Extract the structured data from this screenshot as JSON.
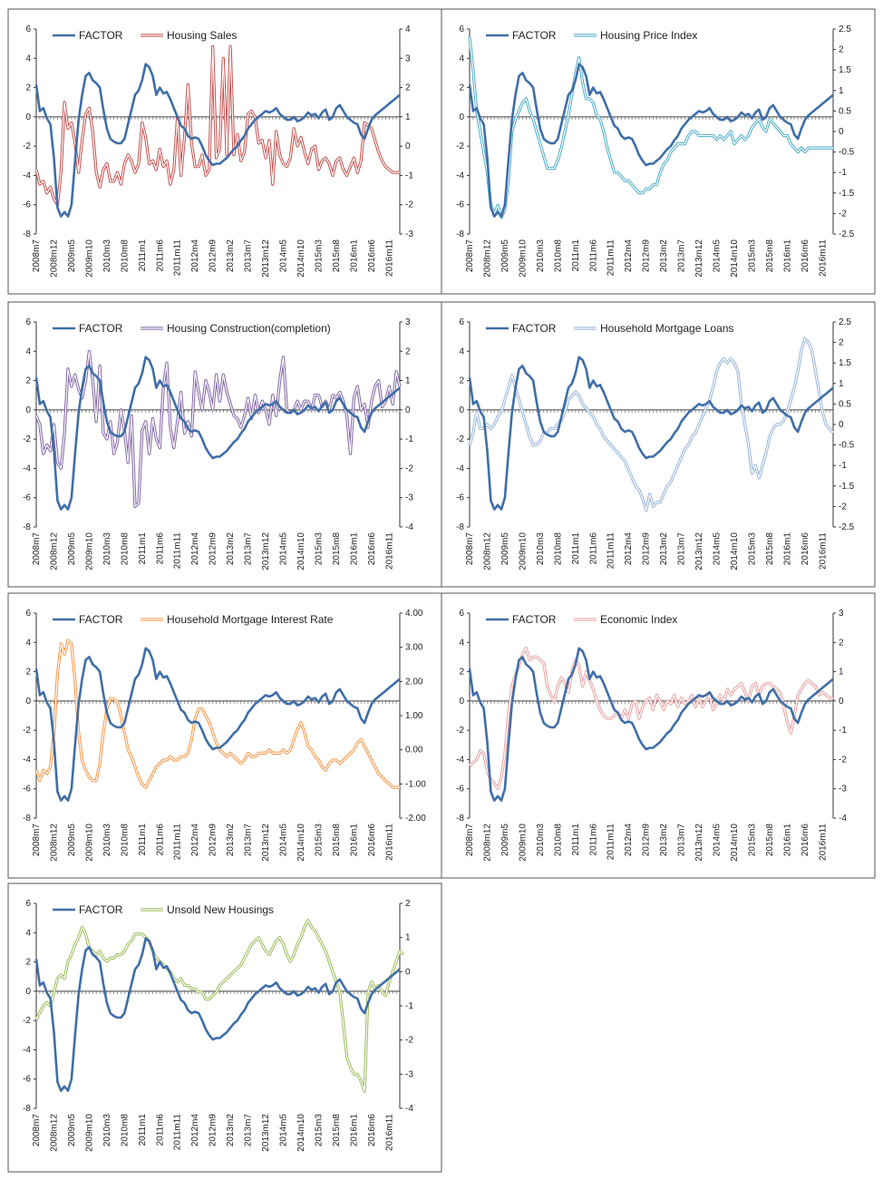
{
  "x_ticks": [
    "2008m7",
    "2008m12",
    "2009m5",
    "2009m10",
    "2010m3",
    "2010m8",
    "2011m1",
    "2011m6",
    "2011m11",
    "2012m4",
    "2012m9",
    "2013m2",
    "2013m7",
    "2013m12",
    "2014m5",
    "2014m10",
    "2015m3",
    "2015m8",
    "2016m1",
    "2016m6",
    "2016m11"
  ],
  "factor": [
    2.2,
    0.4,
    0.6,
    -0.1,
    -0.5,
    -2.8,
    -6.2,
    -6.8,
    -6.5,
    -6.8,
    -6.0,
    -3.0,
    -0.2,
    1.5,
    2.8,
    3.0,
    2.5,
    2.3,
    2.0,
    0.5,
    -0.8,
    -1.5,
    -1.7,
    -1.8,
    -1.8,
    -1.5,
    -0.5,
    0.5,
    1.5,
    1.8,
    2.5,
    3.6,
    3.4,
    2.8,
    1.5,
    2.0,
    1.6,
    1.7,
    1.2,
    0.6,
    0.0,
    -0.6,
    -0.8,
    -1.3,
    -1.5,
    -1.4,
    -1.5,
    -2.0,
    -2.6,
    -3.0,
    -3.3,
    -3.2,
    -3.2,
    -3.0,
    -2.8,
    -2.5,
    -2.2,
    -2.0,
    -1.6,
    -1.3,
    -0.8,
    -0.5,
    -0.2,
    0.0,
    0.2,
    0.4,
    0.3,
    0.4,
    0.6,
    0.2,
    0.0,
    -0.2,
    -0.2,
    0.0,
    -0.3,
    -0.2,
    0.0,
    0.3,
    0.1,
    0.2,
    -0.1,
    0.3,
    0.5,
    -0.2,
    0.0,
    0.6,
    0.8,
    0.4,
    0.0,
    -0.2,
    -0.4,
    -0.5,
    -1.2,
    -1.5,
    -0.8,
    -0.2,
    0.1,
    0.3,
    0.5,
    0.7,
    0.9,
    1.1,
    1.3,
    1.5
  ],
  "panels": [
    {
      "factor_label": "FACTOR",
      "series_label": "Housing Sales",
      "series_color": "#c0504d",
      "left_ylim": [
        -8,
        6
      ],
      "left_ticks": [
        "6",
        "4",
        "2",
        "0",
        "-2",
        "-4",
        "-6",
        "-8"
      ],
      "right_ylim": [
        -3,
        4
      ],
      "right_ticks": [
        "4",
        "3",
        "2",
        "1",
        "0",
        "-1",
        "-2",
        "-3"
      ],
      "values": [
        -0.8,
        -1.3,
        -1.2,
        -1.6,
        -1.4,
        -1.8,
        -2.0,
        -0.9,
        1.5,
        0.6,
        0.8,
        0.1,
        -0.9,
        0.2,
        1.1,
        1.3,
        0.5,
        -0.9,
        -1.4,
        -0.8,
        -0.6,
        -1.2,
        -1.2,
        -0.9,
        -1.3,
        -0.6,
        -0.3,
        -0.5,
        -0.9,
        -0.6,
        0.8,
        0.3,
        -0.6,
        -0.5,
        -0.8,
        -0.1,
        -0.7,
        -0.5,
        -1.3,
        -0.8,
        1.0,
        -1.0,
        0.3,
        2.1,
        0.1,
        -0.7,
        -0.7,
        -0.3,
        -1.0,
        -0.8,
        3.4,
        -0.4,
        -0.1,
        3.0,
        -0.3,
        3.4,
        -0.3,
        0.4,
        -0.5,
        -0.2,
        1.1,
        1.2,
        1.0,
        0.1,
        0.2,
        -0.4,
        0.2,
        -1.3,
        0.5,
        -0.3,
        -0.6,
        -0.7,
        -0.4,
        0.6,
        0.0,
        0.3,
        -0.2,
        -0.6,
        -0.1,
        0.0,
        -0.8,
        -0.5,
        -0.4,
        -0.6,
        -1.0,
        -0.5,
        -0.4,
        -0.8,
        -1.0,
        -0.7,
        -0.4,
        -0.9,
        -0.5,
        0.8,
        0.7,
        0.6,
        0.2,
        -0.2,
        -0.5,
        -0.7,
        -0.8,
        -0.9,
        -0.9,
        -0.9
      ]
    },
    {
      "factor_label": "FACTOR",
      "series_label": "Housing Price Index",
      "series_color": "#4bacc6",
      "left_ylim": [
        -8,
        6
      ],
      "left_ticks": [
        "6",
        "4",
        "2",
        "0",
        "-2",
        "-4",
        "-6",
        "-8"
      ],
      "right_ylim": [
        -2.5,
        2.5
      ],
      "right_ticks": [
        "2.5",
        "2",
        "1.5",
        "1",
        "0.5",
        "0",
        "-0.5",
        "-1",
        "-1.5",
        "-2",
        "-2.5"
      ],
      "values": [
        2.3,
        1.5,
        0.5,
        0.0,
        -0.5,
        -1.0,
        -1.8,
        -2.0,
        -1.8,
        -2.1,
        -1.9,
        -1.2,
        0.0,
        0.3,
        0.5,
        0.7,
        0.8,
        0.5,
        0.3,
        0.0,
        -0.3,
        -0.6,
        -0.9,
        -0.9,
        -0.9,
        -0.7,
        -0.4,
        0.0,
        0.4,
        0.9,
        1.4,
        1.8,
        1.2,
        0.8,
        0.8,
        0.7,
        0.4,
        0.3,
        0.0,
        -0.4,
        -0.7,
        -1.0,
        -1.0,
        -1.1,
        -1.2,
        -1.2,
        -1.3,
        -1.4,
        -1.5,
        -1.5,
        -1.4,
        -1.4,
        -1.3,
        -1.3,
        -1.0,
        -0.8,
        -0.7,
        -0.5,
        -0.4,
        -0.3,
        -0.3,
        -0.3,
        -0.1,
        0.0,
        0.0,
        -0.1,
        -0.1,
        -0.1,
        -0.1,
        -0.1,
        -0.2,
        -0.1,
        -0.2,
        -0.1,
        0.0,
        -0.3,
        -0.2,
        -0.1,
        -0.2,
        -0.1,
        0.1,
        0.2,
        0.3,
        0.1,
        0.0,
        0.3,
        0.2,
        0.1,
        0.0,
        -0.1,
        -0.1,
        -0.3,
        -0.4,
        -0.5,
        -0.4,
        -0.5,
        -0.4,
        -0.4,
        -0.4,
        -0.4,
        -0.4,
        -0.4,
        -0.4,
        -0.4
      ]
    },
    {
      "factor_label": "FACTOR",
      "series_label": "Housing Construction(completion)",
      "series_color": "#8064a2",
      "left_ylim": [
        -8,
        6
      ],
      "left_ticks": [
        "6",
        "4",
        "2",
        "0",
        "-2",
        "-4",
        "-6",
        "-8"
      ],
      "right_ylim": [
        -4,
        3
      ],
      "right_ticks": [
        "3",
        "2",
        "1",
        "0",
        "-1",
        "-2",
        "-3",
        "-4"
      ],
      "values": [
        -0.2,
        -0.5,
        -1.5,
        -1.2,
        -1.4,
        -0.5,
        -1.8,
        -2.0,
        -0.8,
        1.4,
        0.8,
        1.2,
        0.7,
        0.4,
        1.0,
        2.0,
        1.0,
        -0.4,
        1.5,
        -0.8,
        -1.0,
        -0.4,
        -1.5,
        -1.1,
        0.0,
        -0.7,
        -1.8,
        -0.2,
        -3.3,
        -3.2,
        -0.7,
        -0.4,
        -1.5,
        -0.3,
        -1.0,
        -1.3,
        0.8,
        1.6,
        -0.6,
        -1.3,
        -0.4,
        0.6,
        -0.8,
        -0.4,
        -0.9,
        1.3,
        0.6,
        0.0,
        1.0,
        0.6,
        0.0,
        1.2,
        0.3,
        1.2,
        0.6,
        0.2,
        -0.2,
        -0.3,
        -0.6,
        -0.2,
        0.4,
        -0.3,
        0.5,
        -0.1,
        0.3,
        0.0,
        -0.5,
        0.5,
        -0.2,
        1.0,
        1.8,
        0.0,
        -0.1,
        0.0,
        0.3,
        0.0,
        0.3,
        0.3,
        0.0,
        0.5,
        0.5,
        0.1,
        0.3,
        0.0,
        0.5,
        0.4,
        0.6,
        0.3,
        -0.2,
        -1.5,
        0.4,
        0.8,
        0.0,
        0.2,
        -0.6,
        0.3,
        0.8,
        1.0,
        0.1,
        0.3,
        0.8,
        0.2,
        1.3,
        0.8
      ]
    },
    {
      "factor_label": "FACTOR",
      "series_label": "Household Mortgage Loans",
      "series_color": "#95b3d7",
      "left_ylim": [
        -8,
        6
      ],
      "left_ticks": [
        "6",
        "4",
        "2",
        "0",
        "-2",
        "-4",
        "-6",
        "-8"
      ],
      "right_ylim": [
        -2.5,
        2.5
      ],
      "right_ticks": [
        "2.5",
        "2",
        "1.5",
        "1",
        "0.5",
        "0",
        "-0.5",
        "-1",
        "-1.5",
        "-2",
        "-2.5"
      ],
      "values": [
        -0.5,
        -0.2,
        0.3,
        -0.1,
        -0.1,
        0.0,
        -0.1,
        0.0,
        0.2,
        0.3,
        0.6,
        0.9,
        1.2,
        0.9,
        0.6,
        0.3,
        0.0,
        -0.3,
        -0.5,
        -0.5,
        -0.4,
        -0.2,
        -0.2,
        -0.1,
        -0.1,
        0.0,
        0.1,
        0.3,
        0.6,
        0.7,
        0.8,
        0.7,
        0.5,
        0.4,
        0.3,
        0.2,
        0.0,
        -0.1,
        -0.3,
        -0.4,
        -0.5,
        -0.6,
        -0.7,
        -0.8,
        -0.9,
        -1.1,
        -1.3,
        -1.5,
        -1.6,
        -1.8,
        -2.1,
        -1.7,
        -2.0,
        -1.9,
        -1.9,
        -1.7,
        -1.5,
        -1.4,
        -1.2,
        -1.0,
        -0.8,
        -0.6,
        -0.5,
        -0.3,
        -0.2,
        0.0,
        0.2,
        0.4,
        0.6,
        0.9,
        1.3,
        1.5,
        1.6,
        1.5,
        1.6,
        1.5,
        1.3,
        0.5,
        0.0,
        -0.5,
        -1.2,
        -1.0,
        -1.3,
        -1.0,
        -0.7,
        -0.3,
        -0.1,
        0.0,
        0.0,
        0.1,
        0.3,
        0.6,
        0.9,
        1.3,
        1.8,
        2.1,
        2.0,
        1.8,
        1.3,
        0.8,
        0.3,
        0.0,
        -0.1,
        -0.2
      ]
    },
    {
      "factor_label": "FACTOR",
      "series_label": "Household Mortgage Interest Rate",
      "series_color": "#f79646",
      "left_ylim": [
        -8,
        6
      ],
      "left_ticks": [
        "6",
        "4",
        "2",
        "0",
        "-2",
        "-4",
        "-6",
        "-8"
      ],
      "right_ylim": [
        -2,
        4
      ],
      "right_ticks": [
        "4.00",
        "3.00",
        "2.00",
        "1.00",
        "0.00",
        "-1.00",
        "-2.00"
      ],
      "values": [
        -0.6,
        -0.9,
        -0.6,
        -0.7,
        -0.5,
        0.5,
        2.2,
        3.1,
        2.8,
        3.2,
        3.1,
        2.0,
        0.5,
        -0.3,
        -0.6,
        -0.8,
        -0.9,
        -0.9,
        -0.4,
        0.5,
        1.2,
        1.5,
        1.5,
        1.4,
        1.0,
        0.5,
        0.0,
        -0.2,
        -0.5,
        -0.8,
        -1.0,
        -1.1,
        -0.9,
        -0.7,
        -0.5,
        -0.4,
        -0.3,
        -0.3,
        -0.2,
        -0.3,
        -0.3,
        -0.2,
        -0.2,
        -0.1,
        0.3,
        0.9,
        1.2,
        1.2,
        1.0,
        0.8,
        0.5,
        0.2,
        0.0,
        -0.1,
        -0.2,
        -0.1,
        -0.2,
        -0.3,
        -0.4,
        -0.3,
        -0.1,
        -0.2,
        -0.2,
        -0.1,
        -0.1,
        -0.1,
        0.0,
        -0.1,
        -0.1,
        -0.1,
        0.0,
        -0.1,
        0.0,
        0.3,
        0.6,
        0.8,
        0.5,
        0.1,
        0.0,
        -0.2,
        -0.3,
        -0.5,
        -0.6,
        -0.4,
        -0.3,
        -0.3,
        -0.4,
        -0.3,
        -0.2,
        -0.1,
        0.0,
        0.2,
        0.3,
        0.1,
        -0.1,
        -0.3,
        -0.5,
        -0.7,
        -0.8,
        -0.9,
        -1.0,
        -1.1,
        -1.1,
        -1.1
      ]
    },
    {
      "factor_label": "FACTOR",
      "series_label": "Economic Index",
      "series_color": "#e6a0a0",
      "left_ylim": [
        -8,
        6
      ],
      "left_ticks": [
        "6",
        "4",
        "2",
        "0",
        "-2",
        "-4",
        "-6",
        "-8"
      ],
      "right_ylim": [
        -4,
        3
      ],
      "right_ticks": [
        "3",
        "2",
        "1",
        "0",
        "-1",
        "-2",
        "-3",
        "-4"
      ],
      "values": [
        -2.2,
        -2.1,
        -2.0,
        -1.7,
        -1.8,
        -2.4,
        -2.7,
        -2.8,
        -3.0,
        -2.6,
        -1.8,
        -0.5,
        0.5,
        0.9,
        1.2,
        1.6,
        1.8,
        1.4,
        1.5,
        1.5,
        1.4,
        1.3,
        0.5,
        0.2,
        0.0,
        0.5,
        0.8,
        0.6,
        0.3,
        1.0,
        1.4,
        1.2,
        0.5,
        1.0,
        0.7,
        0.4,
        0.0,
        -0.3,
        -0.5,
        -0.6,
        -0.6,
        -0.5,
        -0.4,
        -0.6,
        -0.3,
        -0.6,
        -0.1,
        0.0,
        -0.6,
        -0.2,
        0.0,
        0.1,
        -0.3,
        0.2,
        0.0,
        -0.3,
        0.0,
        -0.1,
        0.2,
        -0.2,
        0.1,
        -0.1,
        0.0,
        0.2,
        -0.2,
        0.1,
        -0.2,
        0.0,
        0.2,
        -0.3,
        -0.1,
        0.2,
        0.0,
        0.4,
        0.2,
        0.4,
        0.5,
        0.6,
        0.3,
        0.0,
        0.5,
        0.6,
        0.2,
        0.5,
        0.6,
        0.6,
        0.5,
        0.4,
        0.3,
        -0.2,
        -0.7,
        -1.1,
        -0.5,
        0.2,
        0.4,
        0.6,
        0.7,
        0.6,
        0.5,
        0.2,
        0.3,
        0.2,
        0.1,
        0.1
      ]
    },
    {
      "factor_label": "FACTOR",
      "series_label": "Unsold New Housings",
      "series_color": "#9bbb59",
      "left_ylim": [
        -8,
        6
      ],
      "left_ticks": [
        "6",
        "4",
        "2",
        "0",
        "-2",
        "-4",
        "-6",
        "-8"
      ],
      "right_ylim": [
        -4,
        2
      ],
      "right_ticks": [
        "2",
        "1",
        "0",
        "-1",
        "-2",
        "-3",
        "-4"
      ],
      "values": [
        -1.4,
        -1.2,
        -1.0,
        -0.9,
        -1.0,
        -0.6,
        -0.2,
        -0.1,
        -0.2,
        0.3,
        0.5,
        0.8,
        1.0,
        1.3,
        1.1,
        0.7,
        0.6,
        0.5,
        0.6,
        0.4,
        0.3,
        0.4,
        0.4,
        0.5,
        0.5,
        0.6,
        0.8,
        0.9,
        1.1,
        1.1,
        1.1,
        1.0,
        0.9,
        0.6,
        0.4,
        0.3,
        0.2,
        0.1,
        0.0,
        -0.2,
        -0.3,
        -0.2,
        -0.4,
        -0.4,
        -0.5,
        -0.5,
        -0.6,
        -0.6,
        -0.8,
        -0.8,
        -0.7,
        -0.6,
        -0.4,
        -0.3,
        -0.2,
        -0.1,
        0.0,
        0.1,
        0.2,
        0.4,
        0.6,
        0.8,
        0.9,
        1.0,
        0.8,
        0.6,
        0.5,
        0.7,
        0.9,
        1.0,
        0.8,
        0.5,
        0.3,
        0.5,
        0.8,
        1.0,
        1.3,
        1.5,
        1.3,
        1.2,
        1.0,
        0.8,
        0.6,
        0.3,
        0.0,
        -0.3,
        -0.6,
        -1.5,
        -2.5,
        -2.8,
        -3.0,
        -3.0,
        -3.2,
        -3.5,
        -0.6,
        -0.3,
        -0.5,
        -0.4,
        -0.6,
        -0.7,
        -0.3,
        0.0,
        0.3,
        0.6,
        0.5
      ]
    }
  ]
}
